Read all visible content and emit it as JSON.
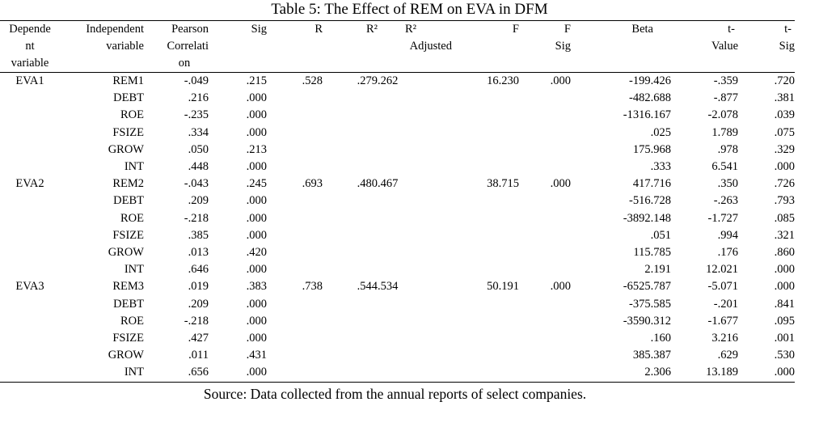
{
  "title": "Table 5: The Effect of REM on EVA in DFM",
  "headers": {
    "dependent": [
      "Depende",
      "nt",
      "variable"
    ],
    "independent": [
      "Independent",
      "variable"
    ],
    "pearson": [
      "Pearson",
      "Correlati",
      "on"
    ],
    "sig": "Sig",
    "r": "R",
    "r2": "R²",
    "r2adj": [
      "R²",
      "Adjusted"
    ],
    "f": "F",
    "fsig": [
      "F",
      "Sig"
    ],
    "beta": "Beta",
    "tvalue": [
      "t-",
      "Value"
    ],
    "tsig": [
      "t-",
      "Sig"
    ]
  },
  "rows": [
    {
      "dep": "EVA1",
      "ind": "REM1",
      "pearson": "-.049",
      "sig": ".215",
      "r": ".528",
      "r2": ".279",
      "r2adj": ".262",
      "f": "16.230",
      "fsig": ".000",
      "beta": "-199.426",
      "t": "-.359",
      "tsig": ".720"
    },
    {
      "dep": "",
      "ind": "DEBT",
      "pearson": ".216",
      "sig": ".000",
      "r": "",
      "r2": "",
      "r2adj": "",
      "f": "",
      "fsig": "",
      "beta": "-482.688",
      "t": "-.877",
      "tsig": ".381"
    },
    {
      "dep": "",
      "ind": "ROE",
      "pearson": "-.235",
      "sig": ".000",
      "r": "",
      "r2": "",
      "r2adj": "",
      "f": "",
      "fsig": "",
      "beta": "-1316.167",
      "t": "-2.078",
      "tsig": ".039"
    },
    {
      "dep": "",
      "ind": "FSIZE",
      "pearson": ".334",
      "sig": ".000",
      "r": "",
      "r2": "",
      "r2adj": "",
      "f": "",
      "fsig": "",
      "beta": ".025",
      "t": "1.789",
      "tsig": ".075"
    },
    {
      "dep": "",
      "ind": "GROW",
      "pearson": ".050",
      "sig": ".213",
      "r": "",
      "r2": "",
      "r2adj": "",
      "f": "",
      "fsig": "",
      "beta": "175.968",
      "t": ".978",
      "tsig": ".329"
    },
    {
      "dep": "",
      "ind": "INT",
      "pearson": ".448",
      "sig": ".000",
      "r": "",
      "r2": "",
      "r2adj": "",
      "f": "",
      "fsig": "",
      "beta": ".333",
      "t": "6.541",
      "tsig": ".000"
    },
    {
      "dep": "EVA2",
      "ind": "REM2",
      "pearson": "-.043",
      "sig": ".245",
      "r": ".693",
      "r2": ".480",
      "r2adj": ".467",
      "f": "38.715",
      "fsig": ".000",
      "beta": "417.716",
      "t": ".350",
      "tsig": ".726"
    },
    {
      "dep": "",
      "ind": "DEBT",
      "pearson": ".209",
      "sig": ".000",
      "r": "",
      "r2": "",
      "r2adj": "",
      "f": "",
      "fsig": "",
      "beta": "-516.728",
      "t": "-.263",
      "tsig": ".793"
    },
    {
      "dep": "",
      "ind": "ROE",
      "pearson": "-.218",
      "sig": ".000",
      "r": "",
      "r2": "",
      "r2adj": "",
      "f": "",
      "fsig": "",
      "beta": "-3892.148",
      "t": "-1.727",
      "tsig": ".085"
    },
    {
      "dep": "",
      "ind": "FSIZE",
      "pearson": ".385",
      "sig": ".000",
      "r": "",
      "r2": "",
      "r2adj": "",
      "f": "",
      "fsig": "",
      "beta": ".051",
      "t": ".994",
      "tsig": ".321"
    },
    {
      "dep": "",
      "ind": "GROW",
      "pearson": ".013",
      "sig": ".420",
      "r": "",
      "r2": "",
      "r2adj": "",
      "f": "",
      "fsig": "",
      "beta": "115.785",
      "t": ".176",
      "tsig": ".860"
    },
    {
      "dep": "",
      "ind": "INT",
      "pearson": ".646",
      "sig": ".000",
      "r": "",
      "r2": "",
      "r2adj": "",
      "f": "",
      "fsig": "",
      "beta": "2.191",
      "t": "12.021",
      "tsig": ".000"
    },
    {
      "dep": "EVA3",
      "ind": "REM3",
      "pearson": ".019",
      "sig": ".383",
      "r": ".738",
      "r2": ".544",
      "r2adj": ".534",
      "f": "50.191",
      "fsig": ".000",
      "beta": "-6525.787",
      "t": "-5.071",
      "tsig": ".000"
    },
    {
      "dep": "",
      "ind": "DEBT",
      "pearson": ".209",
      "sig": ".000",
      "r": "",
      "r2": "",
      "r2adj": "",
      "f": "",
      "fsig": "",
      "beta": "-375.585",
      "t": "-.201",
      "tsig": ".841"
    },
    {
      "dep": "",
      "ind": "ROE",
      "pearson": "-.218",
      "sig": ".000",
      "r": "",
      "r2": "",
      "r2adj": "",
      "f": "",
      "fsig": "",
      "beta": "-3590.312",
      "t": "-1.677",
      "tsig": ".095"
    },
    {
      "dep": "",
      "ind": "FSIZE",
      "pearson": ".427",
      "sig": ".000",
      "r": "",
      "r2": "",
      "r2adj": "",
      "f": "",
      "fsig": "",
      "beta": ".160",
      "t": "3.216",
      "tsig": ".001"
    },
    {
      "dep": "",
      "ind": "GROW",
      "pearson": ".011",
      "sig": ".431",
      "r": "",
      "r2": "",
      "r2adj": "",
      "f": "",
      "fsig": "",
      "beta": "385.387",
      "t": ".629",
      "tsig": ".530"
    },
    {
      "dep": "",
      "ind": "INT",
      "pearson": ".656",
      "sig": ".000",
      "r": "",
      "r2": "",
      "r2adj": "",
      "f": "",
      "fsig": "",
      "beta": "2.306",
      "t": "13.189",
      "tsig": ".000"
    }
  ],
  "source": "Source: Data collected from the annual reports of select companies."
}
